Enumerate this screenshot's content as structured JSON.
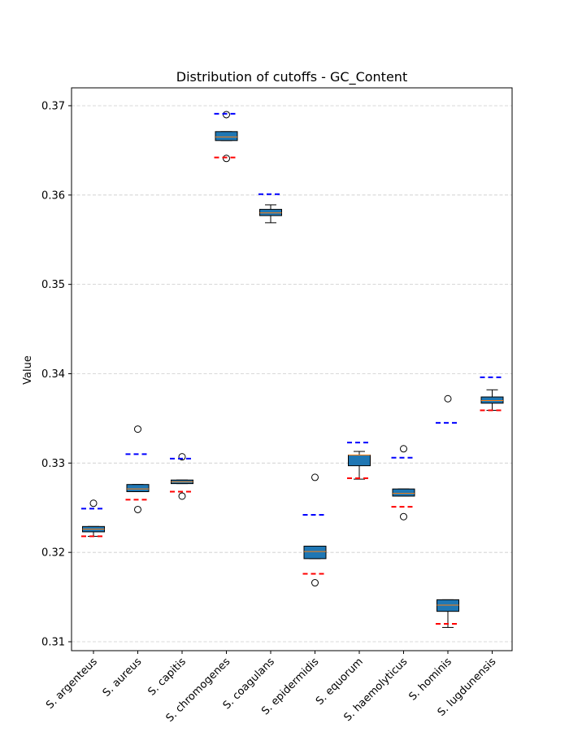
{
  "chart_data": {
    "type": "box",
    "title": "Distribution of cutoffs - GC_Content",
    "xlabel": "",
    "ylabel": "Value",
    "ylim": [
      0.309,
      0.372
    ],
    "yticks": [
      0.31,
      0.32,
      0.33,
      0.34,
      0.35,
      0.36,
      0.37
    ],
    "grid": true,
    "categories": [
      "S. argenteus",
      "S. aureus",
      "S. capitis",
      "S. chromogenes",
      "S. coagulans",
      "S. epidermidis",
      "S. equorum",
      "S. haemolyticus",
      "S. hominis",
      "S. lugdunensis"
    ],
    "boxes": [
      {
        "whisker_low": 0.3218,
        "q1": 0.3223,
        "median": 0.3226,
        "q3": 0.3229,
        "whisker_high": 0.3229,
        "outliers": [
          0.3255
        ]
      },
      {
        "whisker_low": 0.3268,
        "q1": 0.3268,
        "median": 0.3271,
        "q3": 0.3276,
        "whisker_high": 0.3276,
        "outliers": [
          0.3338,
          0.3248
        ]
      },
      {
        "whisker_low": 0.3277,
        "q1": 0.3277,
        "median": 0.3279,
        "q3": 0.3281,
        "whisker_high": 0.3281,
        "outliers": [
          0.3307,
          0.3263
        ]
      },
      {
        "whisker_low": 0.3661,
        "q1": 0.3661,
        "median": 0.3665,
        "q3": 0.3671,
        "whisker_high": 0.3671,
        "outliers": [
          0.369,
          0.3641
        ]
      },
      {
        "whisker_low": 0.3569,
        "q1": 0.3577,
        "median": 0.358,
        "q3": 0.3584,
        "whisker_high": 0.3589,
        "outliers": []
      },
      {
        "whisker_low": 0.3193,
        "q1": 0.3193,
        "median": 0.3201,
        "q3": 0.3207,
        "whisker_high": 0.3207,
        "outliers": [
          0.3284,
          0.3166
        ]
      },
      {
        "whisker_low": 0.3282,
        "q1": 0.3297,
        "median": 0.3309,
        "q3": 0.3309,
        "whisker_high": 0.3313,
        "outliers": []
      },
      {
        "whisker_low": 0.3263,
        "q1": 0.3263,
        "median": 0.3266,
        "q3": 0.3271,
        "whisker_high": 0.3271,
        "outliers": [
          0.3316,
          0.324
        ]
      },
      {
        "whisker_low": 0.3116,
        "q1": 0.3134,
        "median": 0.3141,
        "q3": 0.3147,
        "whisker_high": 0.3147,
        "outliers": [
          0.3372
        ]
      },
      {
        "whisker_low": 0.3359,
        "q1": 0.3367,
        "median": 0.337,
        "q3": 0.3374,
        "whisker_high": 0.3382,
        "outliers": []
      }
    ],
    "upper_cutoffs": [
      0.3249,
      0.331,
      0.3305,
      0.3691,
      0.3601,
      0.3242,
      0.3323,
      0.3306,
      0.3345,
      0.3396
    ],
    "lower_cutoffs": [
      0.3218,
      0.3259,
      0.3268,
      0.3642,
      null,
      0.3176,
      0.3283,
      0.3251,
      0.312,
      0.3359
    ],
    "colors": {
      "box_fill": "#1f77b4",
      "median": "#ff7f0e",
      "upper_cutoff": "#0000ff",
      "lower_cutoff": "#ff0000",
      "grid": "#cccccc"
    }
  }
}
